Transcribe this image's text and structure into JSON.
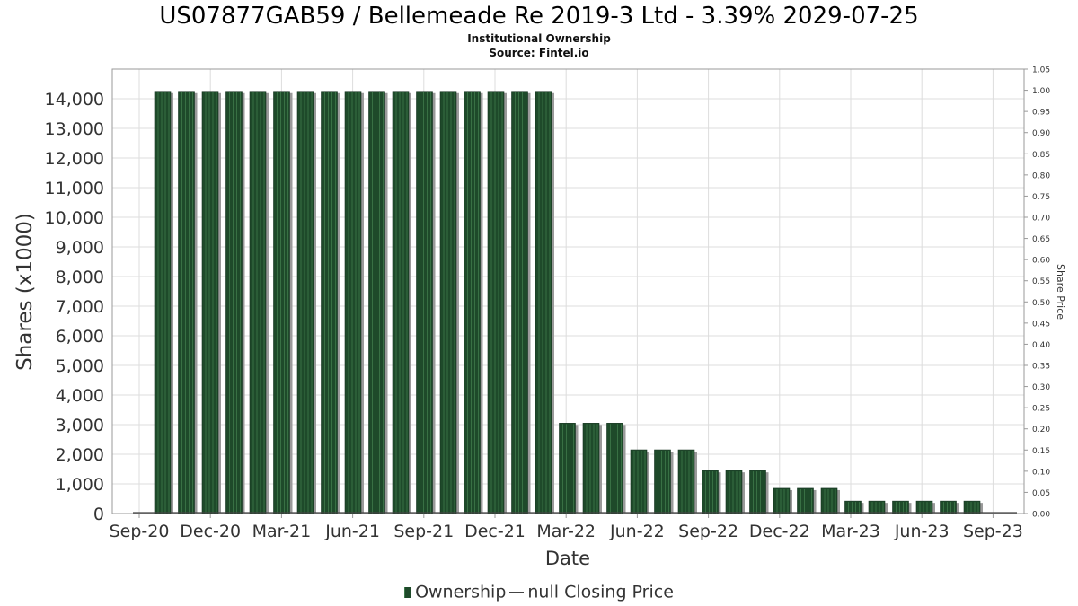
{
  "title": "US07877GAB59 / Bellemeade Re 2019-3 Ltd - 3.39% 2029-07-25",
  "subtitle1": "Institutional Ownership",
  "subtitle2": "Source: Fintel.io",
  "legend": {
    "ownership_label": "Ownership",
    "price_label": "null Closing Price"
  },
  "colors": {
    "bar": "#1e4a2a",
    "bar_stripe": "#3f7a4c",
    "bar_shadow": "#9a9a9a",
    "grid": "#dddddd"
  },
  "chart_data": {
    "type": "bar",
    "title": "US07877GAB59 / Bellemeade Re 2019-3 Ltd - 3.39% 2029-07-25",
    "xlabel": "Date",
    "ylabel": "Shares (x1000)",
    "y2label": "Share Price",
    "ylim": [
      0,
      15000
    ],
    "y2lim": [
      0,
      1.05
    ],
    "grid": true,
    "legend_position": "bottom",
    "x_tick_labels": [
      "Sep-20",
      "Dec-20",
      "Mar-21",
      "Jun-21",
      "Sep-21",
      "Dec-21",
      "Mar-22",
      "Jun-22",
      "Sep-22",
      "Dec-22",
      "Mar-23",
      "Jun-23",
      "Sep-23"
    ],
    "y_tick_labels": [
      "0",
      "1,000",
      "2,000",
      "3,000",
      "4,000",
      "5,000",
      "6,000",
      "7,000",
      "8,000",
      "9,000",
      "10,000",
      "11,000",
      "12,000",
      "13,000",
      "14,000"
    ],
    "y2_tick_labels": [
      "0.00",
      "0.05",
      "0.10",
      "0.15",
      "0.20",
      "0.25",
      "0.30",
      "0.35",
      "0.40",
      "0.45",
      "0.50",
      "0.55",
      "0.60",
      "0.65",
      "0.70",
      "0.75",
      "0.80",
      "0.85",
      "0.90",
      "0.95",
      "1.00",
      "1.05"
    ],
    "series": [
      {
        "name": "Ownership",
        "values": [
          14250,
          14250,
          14250,
          14250,
          14250,
          14250,
          14250,
          14250,
          14250,
          14250,
          14250,
          14250,
          14250,
          14250,
          14250,
          14250,
          14250,
          3050,
          3050,
          3050,
          2150,
          2150,
          2150,
          1450,
          1450,
          1450,
          850,
          850,
          850,
          420,
          420,
          420,
          420,
          420,
          420
        ]
      }
    ]
  }
}
